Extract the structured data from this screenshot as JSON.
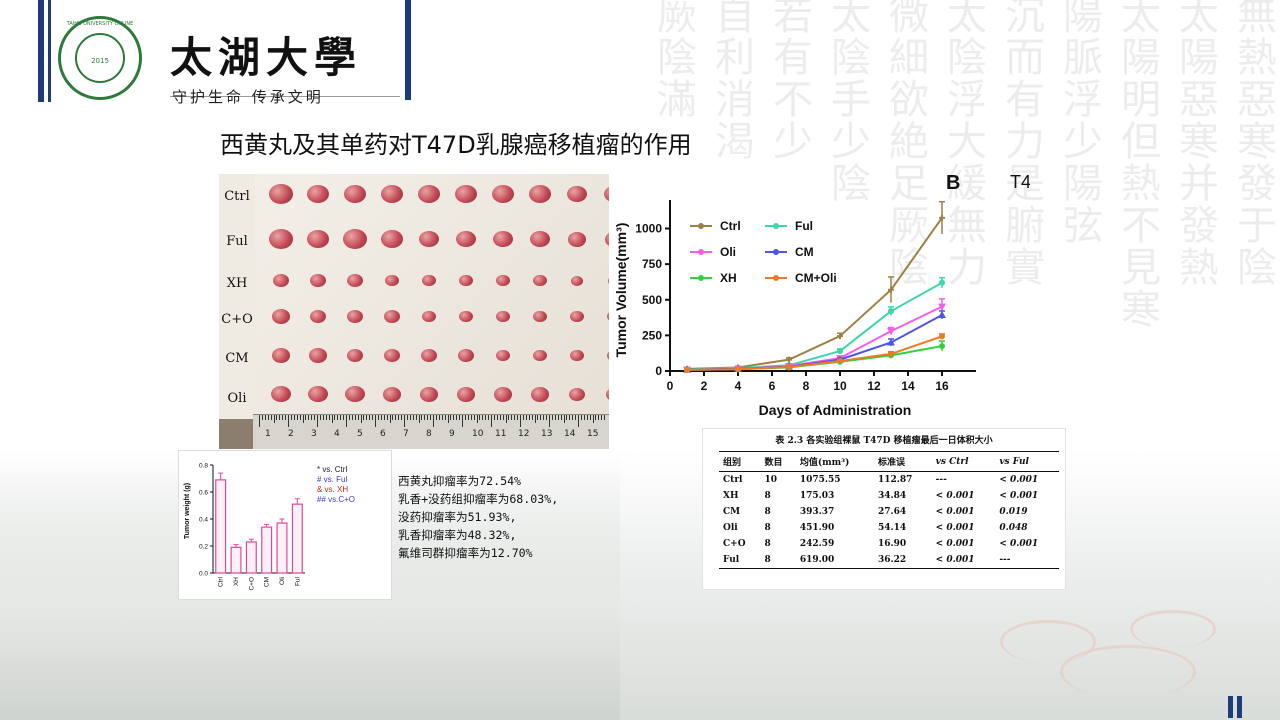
{
  "brand": {
    "name": "太湖大學",
    "slogan": "守护生命 传承文明",
    "logo_year": "2015",
    "logo_ring_text": "TAIHU UNIVERSITY ONLINE"
  },
  "slide_title": "西黄丸及其单药对T47D乳腺癌移植瘤的作用",
  "background_calligraphy": [
    "無熱惡寒發于陰",
    "太陽惡寒并發熱",
    "太陽明但熱不見寒",
    "陽脈浮少陽弦",
    "沉而有力是腑實",
    "太陰浮大緩無力",
    "微細欲絶足厥陰",
    "太陰手少陰",
    "若有不少",
    "自利消渴",
    "厥陰滿"
  ],
  "photo": {
    "row_labels": [
      "Ctrl",
      "Ful",
      "XH",
      "C+O",
      "CM",
      "Oli"
    ],
    "ruler_numbers": [
      "1",
      "2",
      "3",
      "4",
      "5",
      "6",
      "7",
      "8",
      "9",
      "10",
      "11",
      "12",
      "13",
      "14",
      "15"
    ]
  },
  "chart_data": [
    {
      "type": "line",
      "panel": "B",
      "subtitle": "T47d",
      "xlabel": "Days of Administration",
      "ylabel": "Tumor Volume(mm³)",
      "xlim": [
        0,
        18
      ],
      "ylim": [
        0,
        1200
      ],
      "x_ticks": [
        0,
        2,
        4,
        6,
        8,
        10,
        12,
        14,
        16
      ],
      "y_ticks": [
        0,
        250,
        500,
        750,
        1000
      ],
      "legend": "top-left",
      "x": [
        1,
        4,
        7,
        10,
        13,
        16
      ],
      "series": [
        {
          "name": "Ctrl",
          "color": "#9b8144",
          "marker": "plus",
          "values": [
            15,
            25,
            80,
            245,
            570,
            1075
          ],
          "errors": [
            5,
            8,
            12,
            20,
            90,
            113
          ]
        },
        {
          "name": "Ful",
          "color": "#3cd6a8",
          "marker": "circle",
          "values": [
            12,
            20,
            40,
            140,
            420,
            619
          ],
          "errors": [
            4,
            6,
            8,
            15,
            30,
            36
          ]
        },
        {
          "name": "Oli",
          "color": "#f25fe8",
          "marker": "triangle-down",
          "values": [
            10,
            15,
            35,
            90,
            280,
            452
          ],
          "errors": [
            4,
            5,
            6,
            10,
            25,
            54
          ]
        },
        {
          "name": "CM",
          "color": "#4d54e8",
          "marker": "triangle-up",
          "values": [
            10,
            15,
            30,
            80,
            200,
            393
          ],
          "errors": [
            3,
            5,
            6,
            10,
            25,
            28
          ]
        },
        {
          "name": "XH",
          "color": "#2ed23a",
          "marker": "circle",
          "values": [
            8,
            12,
            25,
            65,
            110,
            175
          ],
          "errors": [
            3,
            4,
            5,
            8,
            15,
            35
          ]
        },
        {
          "name": "CM+Oli",
          "color": "#ef7a26",
          "marker": "circle",
          "values": [
            8,
            12,
            28,
            70,
            120,
            243
          ],
          "errors": [
            3,
            4,
            5,
            8,
            15,
            17
          ]
        }
      ]
    },
    {
      "type": "bar",
      "ylabel": "Tumor weight (g)",
      "ylim": [
        0,
        0.8
      ],
      "y_ticks": [
        "0.0",
        "0.2",
        "0.4",
        "0.6",
        "0.8"
      ],
      "categories": [
        "Ctrl",
        "XH",
        "C+O",
        "CM",
        "Oli",
        "Ful"
      ],
      "values": [
        0.69,
        0.19,
        0.23,
        0.34,
        0.37,
        0.51
      ],
      "errors": [
        0.05,
        0.02,
        0.02,
        0.02,
        0.03,
        0.04
      ],
      "color": "#e0479a",
      "legend_entries": [
        {
          "symbol": "*",
          "text": "vs. Ctrl",
          "color": "#222222"
        },
        {
          "symbol": "#",
          "text": "vs. Ful",
          "color": "#3a3ad0"
        },
        {
          "symbol": "&",
          "text": "vs. XH",
          "color": "#d02020"
        },
        {
          "symbol": "##",
          "text": "vs.C+O",
          "color": "#3a3ad0"
        }
      ]
    },
    {
      "type": "table",
      "caption": "表 2.3 各实验组裸鼠 T47D 移植瘤最后一日体积大小",
      "columns": [
        "组别",
        "数目",
        "均值(mm³)",
        "标准误",
        "vs Ctrl",
        "vs Ful"
      ],
      "rows": [
        [
          "Ctrl",
          "10",
          "1075.55",
          "112.87",
          "---",
          "< 0.001"
        ],
        [
          "XH",
          "8",
          "175.03",
          "34.84",
          "< 0.001",
          "< 0.001"
        ],
        [
          "CM",
          "8",
          "393.37",
          "27.64",
          "< 0.001",
          "0.019"
        ],
        [
          "Oli",
          "8",
          "451.90",
          "54.14",
          "< 0.001",
          "0.048"
        ],
        [
          "C+O",
          "8",
          "242.59",
          "16.90",
          "< 0.001",
          "< 0.001"
        ],
        [
          "Ful",
          "8",
          "619.00",
          "36.22",
          "< 0.001",
          "---"
        ]
      ]
    }
  ],
  "inhibition_notes": [
    "西黄丸抑瘤率为72.54%",
    "乳香+没药组抑瘤率为68.03%,",
    "没药抑瘤率为51.93%,",
    "乳香抑瘤率为48.32%,",
    "氟维司群抑瘤率为12.70%"
  ],
  "colors": {
    "accent_blue": "#1d3d7a",
    "logo_green": "#2d7a3a"
  }
}
